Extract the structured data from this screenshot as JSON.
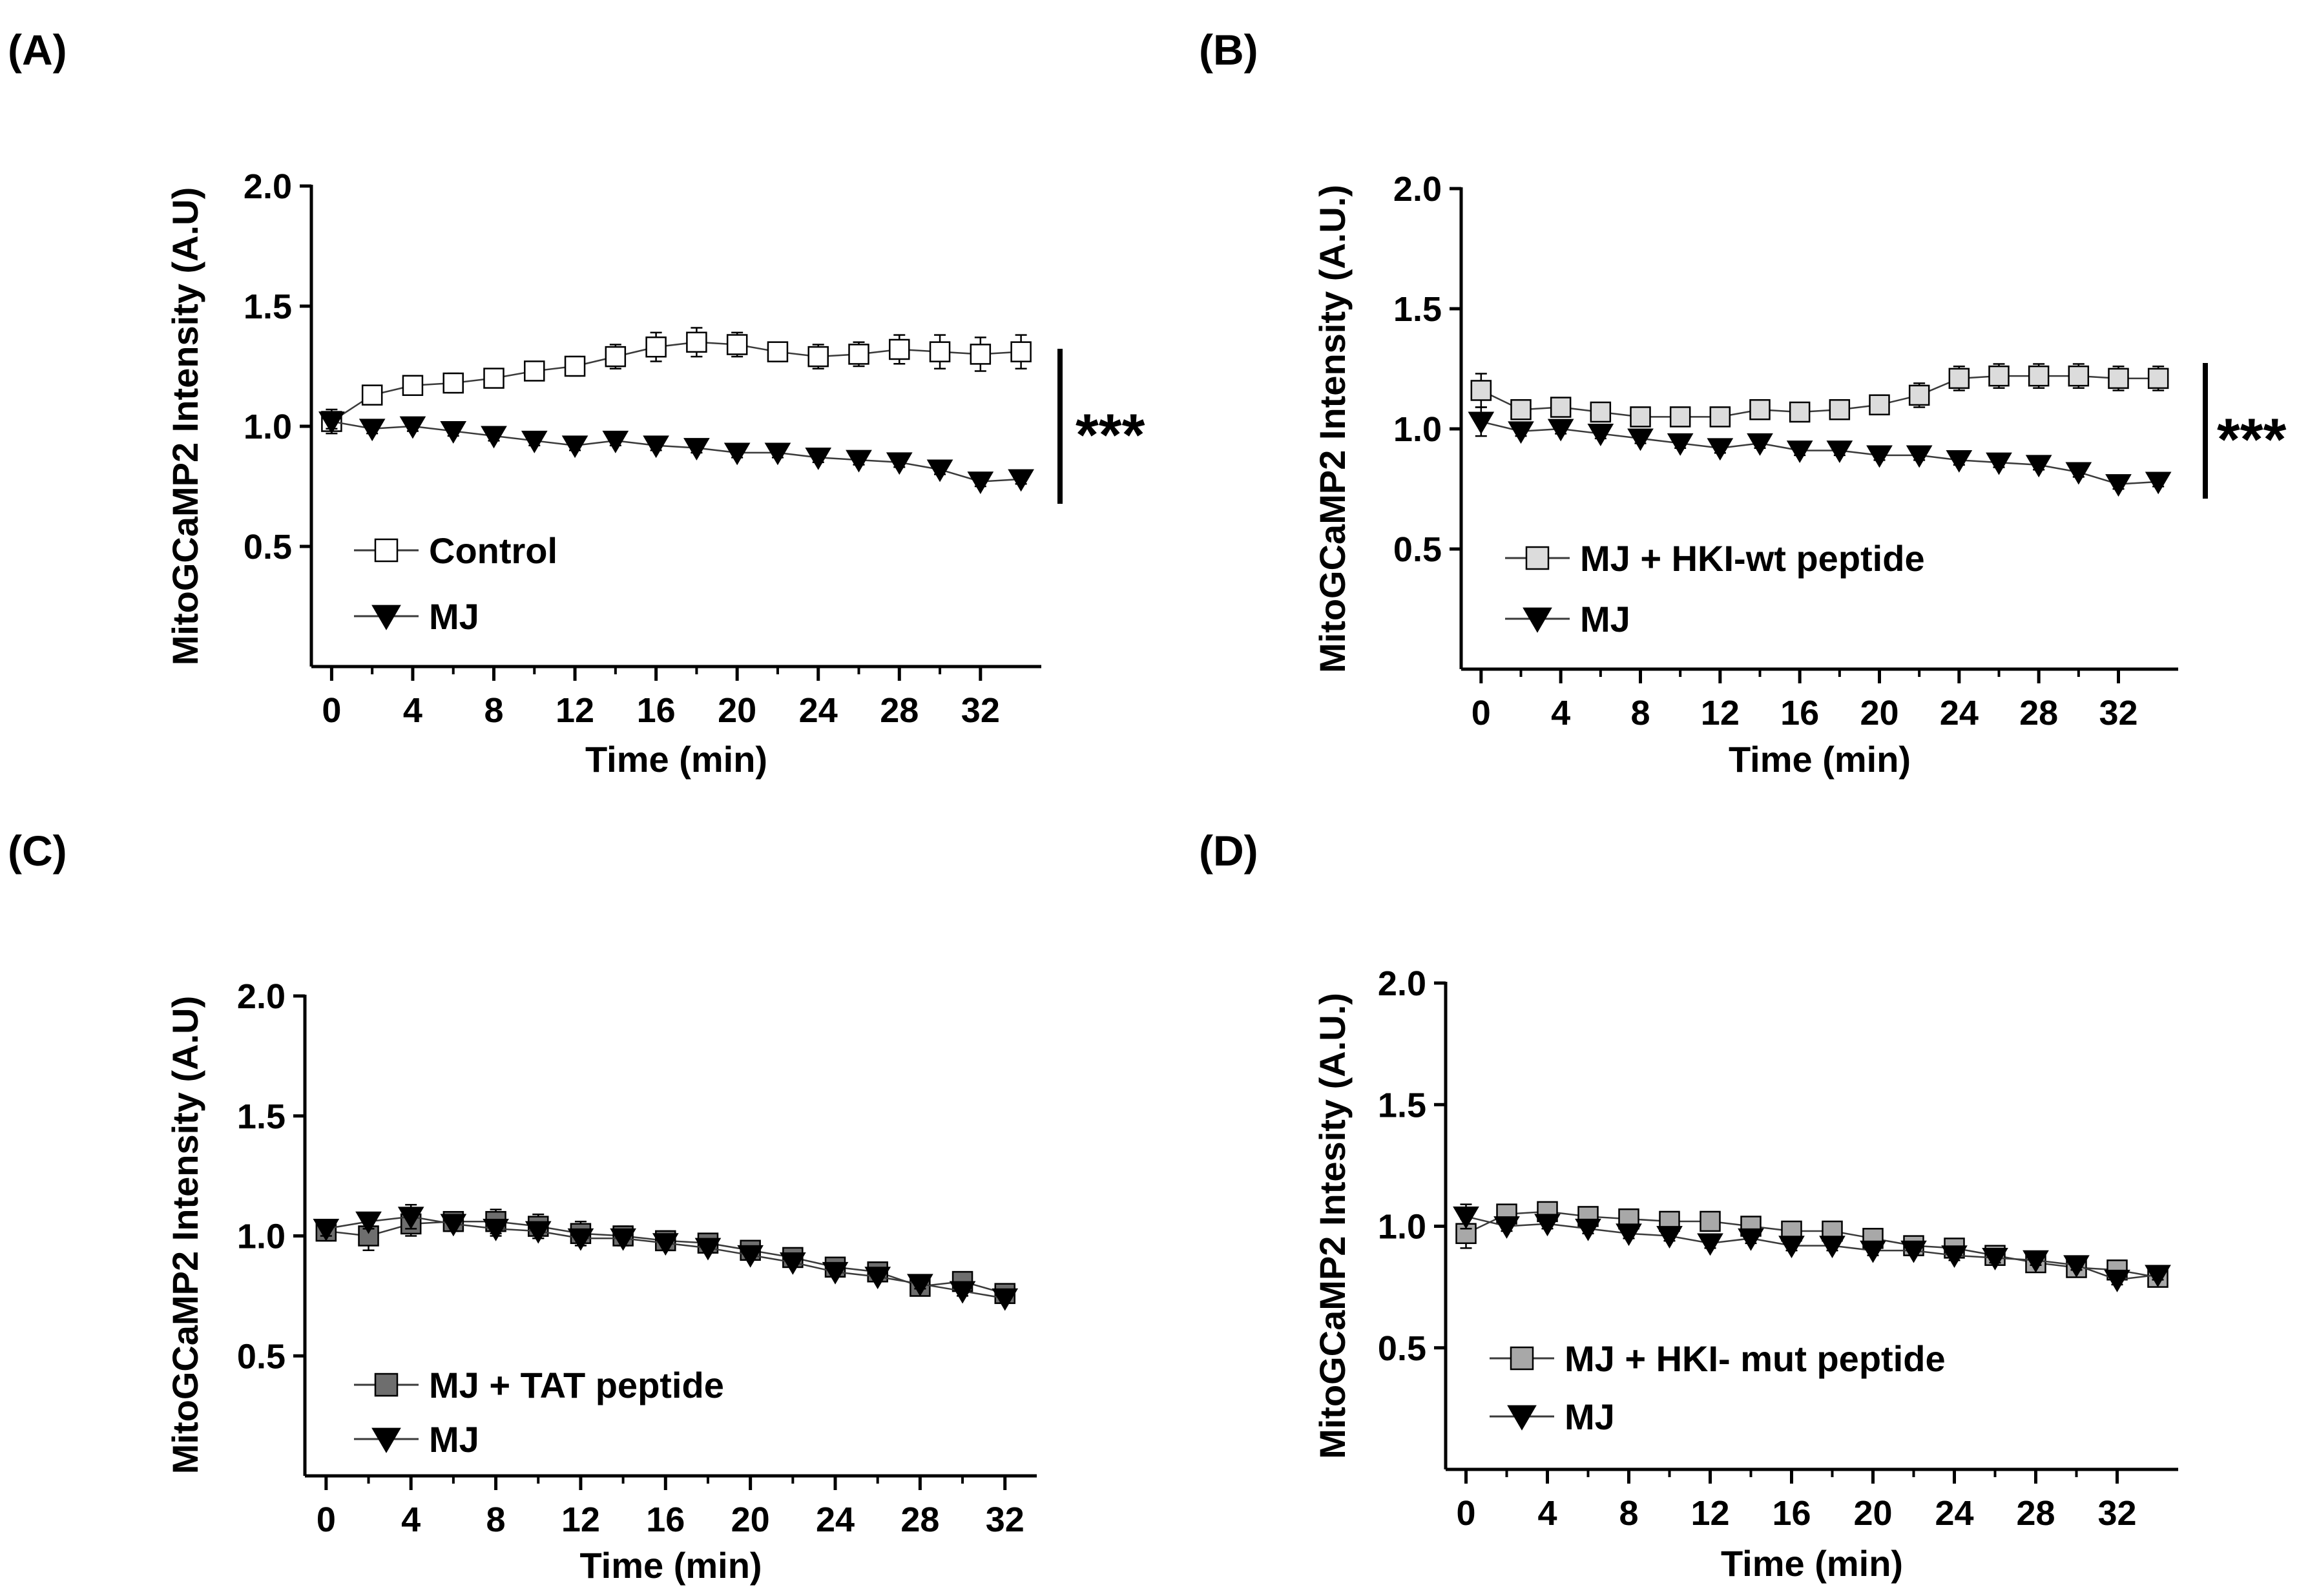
{
  "figure": {
    "background": "#ffffff"
  },
  "chart_data": [
    {
      "id": "A",
      "panel_label": "(A)",
      "type": "line",
      "xlabel": "Time (min)",
      "ylabel": "MitoGCaMP2 Intensity (A.U)",
      "xlim": [
        -1,
        35
      ],
      "ylim": [
        0,
        2.0
      ],
      "x_ticks": [
        "0",
        "4",
        "8",
        "12",
        "16",
        "20",
        "24",
        "28",
        "32"
      ],
      "y_ticks": [
        "0.5",
        "1.0",
        "1.5",
        "2.0"
      ],
      "x": [
        0,
        2,
        4,
        6,
        8,
        10,
        12,
        14,
        16,
        18,
        20,
        22,
        24,
        26,
        28,
        30,
        32,
        34
      ],
      "series": [
        {
          "name": "Control",
          "marker": "square",
          "fill": "#ffffff",
          "values": [
            1.02,
            1.13,
            1.17,
            1.18,
            1.2,
            1.23,
            1.25,
            1.29,
            1.33,
            1.35,
            1.34,
            1.31,
            1.29,
            1.3,
            1.32,
            1.31,
            1.3,
            1.31
          ],
          "errors": [
            0.05,
            0.03,
            0.04,
            0.04,
            0.03,
            0.03,
            0.04,
            0.05,
            0.06,
            0.06,
            0.05,
            0.04,
            0.05,
            0.05,
            0.06,
            0.07,
            0.07,
            0.07
          ]
        },
        {
          "name": "MJ",
          "marker": "triangle-down",
          "fill": "#000000",
          "values": [
            1.02,
            0.99,
            1.0,
            0.98,
            0.96,
            0.94,
            0.92,
            0.94,
            0.92,
            0.91,
            0.89,
            0.89,
            0.87,
            0.86,
            0.85,
            0.82,
            0.77,
            0.78
          ],
          "errors": [
            0.03,
            0.02,
            0.02,
            0.02,
            0.02,
            0.02,
            0.02,
            0.02,
            0.02,
            0.02,
            0.02,
            0.02,
            0.02,
            0.02,
            0.02,
            0.02,
            0.02,
            0.02
          ]
        }
      ],
      "significance": "***"
    },
    {
      "id": "B",
      "panel_label": "(B)",
      "type": "line",
      "xlabel": "Time (min)",
      "ylabel": "MitoGCaMP2 Intensity (A.U.)",
      "xlim": [
        -1,
        35
      ],
      "ylim": [
        0,
        2.0
      ],
      "x_ticks": [
        "0",
        "4",
        "8",
        "12",
        "16",
        "20",
        "24",
        "28",
        "32"
      ],
      "y_ticks": [
        "0.5",
        "1.0",
        "1.5",
        "2.0"
      ],
      "x": [
        0,
        2,
        4,
        6,
        8,
        10,
        12,
        14,
        16,
        18,
        20,
        22,
        24,
        26,
        28,
        30,
        32,
        34
      ],
      "series": [
        {
          "name": "MJ + HKI-wt peptide",
          "marker": "square",
          "fill": "#dcdcdc",
          "values": [
            1.16,
            1.08,
            1.09,
            1.07,
            1.05,
            1.05,
            1.05,
            1.08,
            1.07,
            1.08,
            1.1,
            1.14,
            1.21,
            1.22,
            1.22,
            1.22,
            1.21,
            1.21
          ],
          "errors": [
            0.07,
            0.03,
            0.03,
            0.03,
            0.03,
            0.03,
            0.03,
            0.03,
            0.03,
            0.03,
            0.04,
            0.05,
            0.05,
            0.05,
            0.05,
            0.05,
            0.05,
            0.05
          ]
        },
        {
          "name": "MJ",
          "marker": "triangle-down",
          "fill": "#000000",
          "values": [
            1.03,
            0.99,
            1.0,
            0.98,
            0.96,
            0.94,
            0.92,
            0.94,
            0.91,
            0.91,
            0.89,
            0.89,
            0.87,
            0.86,
            0.85,
            0.82,
            0.77,
            0.78
          ],
          "errors": [
            0.06,
            0.02,
            0.02,
            0.02,
            0.02,
            0.02,
            0.02,
            0.02,
            0.02,
            0.02,
            0.02,
            0.02,
            0.02,
            0.02,
            0.02,
            0.02,
            0.02,
            0.02
          ]
        }
      ],
      "significance": "***"
    },
    {
      "id": "C",
      "panel_label": "(C)",
      "type": "line",
      "xlabel": "Time (min)",
      "ylabel": "MitoGCaMP2 Intensity (A.U)",
      "xlim": [
        -1,
        33.5
      ],
      "ylim": [
        0,
        2.0
      ],
      "x_ticks": [
        "0",
        "4",
        "8",
        "12",
        "16",
        "20",
        "24",
        "28",
        "32"
      ],
      "y_ticks": [
        "0.5",
        "1.0",
        "1.5",
        "2.0"
      ],
      "x": [
        0,
        2,
        4,
        6,
        8,
        10,
        12,
        14,
        16,
        18,
        20,
        22,
        24,
        26,
        28,
        30,
        32
      ],
      "series": [
        {
          "name": "MJ + TAT peptide",
          "marker": "square",
          "fill": "#6e6e6e",
          "values": [
            1.02,
            1.0,
            1.05,
            1.06,
            1.06,
            1.04,
            1.01,
            1.0,
            0.98,
            0.97,
            0.94,
            0.91,
            0.87,
            0.85,
            0.79,
            0.81,
            0.76
          ],
          "errors": [
            0.04,
            0.06,
            0.05,
            0.04,
            0.05,
            0.05,
            0.05,
            0.04,
            0.04,
            0.03,
            0.03,
            0.03,
            0.03,
            0.03,
            0.03,
            0.03,
            0.03
          ]
        },
        {
          "name": "MJ",
          "marker": "triangle-down",
          "fill": "#000000",
          "values": [
            1.03,
            1.06,
            1.08,
            1.05,
            1.03,
            1.02,
            0.99,
            0.99,
            0.97,
            0.95,
            0.92,
            0.89,
            0.85,
            0.83,
            0.8,
            0.77,
            0.74
          ],
          "errors": [
            0.03,
            0.03,
            0.05,
            0.03,
            0.03,
            0.03,
            0.03,
            0.03,
            0.03,
            0.02,
            0.02,
            0.02,
            0.02,
            0.02,
            0.02,
            0.02,
            0.02
          ]
        }
      ]
    },
    {
      "id": "D",
      "panel_label": "(D)",
      "type": "line",
      "xlabel": "Time (min)",
      "ylabel": "MitoGCaMP2 Intesity (A.U.)",
      "xlim": [
        -1,
        35
      ],
      "ylim": [
        0,
        2.0
      ],
      "x_ticks": [
        "0",
        "4",
        "8",
        "12",
        "16",
        "20",
        "24",
        "28",
        "32"
      ],
      "y_ticks": [
        "0.5",
        "1.0",
        "1.5",
        "2.0"
      ],
      "x": [
        0,
        2,
        4,
        6,
        8,
        10,
        12,
        14,
        16,
        18,
        20,
        22,
        24,
        26,
        28,
        30,
        32,
        34
      ],
      "series": [
        {
          "name": "MJ + HKI- mut peptide",
          "marker": "square",
          "fill": "#a8a8a8",
          "values": [
            0.97,
            1.05,
            1.06,
            1.04,
            1.03,
            1.02,
            1.02,
            1.0,
            0.98,
            0.98,
            0.95,
            0.92,
            0.91,
            0.88,
            0.85,
            0.83,
            0.82,
            0.79
          ],
          "errors": [
            0.06,
            0.03,
            0.03,
            0.03,
            0.03,
            0.03,
            0.03,
            0.03,
            0.03,
            0.03,
            0.03,
            0.03,
            0.03,
            0.03,
            0.03,
            0.03,
            0.03,
            0.03
          ]
        },
        {
          "name": "MJ",
          "marker": "triangle-down",
          "fill": "#000000",
          "values": [
            1.04,
            1.0,
            1.01,
            0.99,
            0.97,
            0.96,
            0.93,
            0.95,
            0.92,
            0.92,
            0.9,
            0.9,
            0.88,
            0.87,
            0.86,
            0.84,
            0.78,
            0.8
          ],
          "errors": [
            0.05,
            0.02,
            0.02,
            0.02,
            0.02,
            0.02,
            0.02,
            0.02,
            0.02,
            0.02,
            0.02,
            0.02,
            0.02,
            0.02,
            0.02,
            0.02,
            0.02,
            0.02
          ]
        }
      ]
    }
  ]
}
